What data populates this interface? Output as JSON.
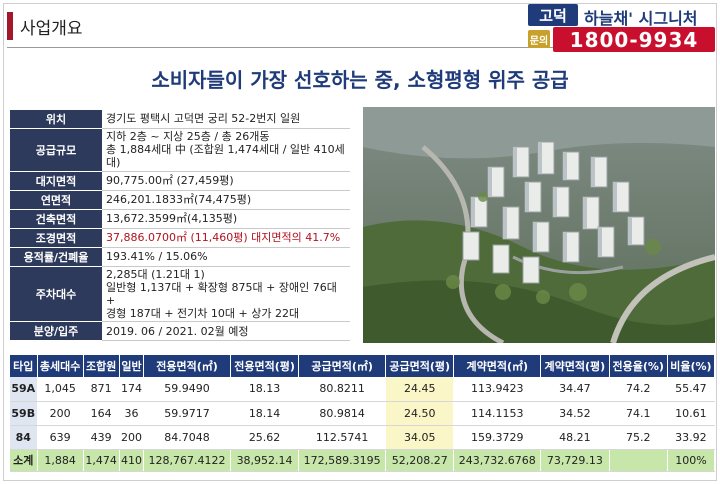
{
  "header": {
    "title": "사업개요"
  },
  "brand": {
    "box_label": "고덕",
    "name": "하늘채' 시그니처",
    "inquiry_label": "문의",
    "phone": "1800-9934"
  },
  "headline": "소비자들이 가장 선호하는 중, 소형평형 위주 공급",
  "info": [
    {
      "key": "위치",
      "value": "경기도 평택시 고덕면 궁리 52-2번지 일원"
    },
    {
      "key": "공급규모",
      "value": "지하 2층 ~ 지상 25층 / 총 26개동\n총 1,884세대 中 (조합원 1,474세대 / 일반 410세대)"
    },
    {
      "key": "대지면적",
      "value": "90,775.00㎡ (27,459평)"
    },
    {
      "key": "연면적",
      "value": "246,201.1833㎡(74,475평)"
    },
    {
      "key": "건축면적",
      "value": "13,672.3599㎡(4,135평)"
    },
    {
      "key": "조경면적",
      "value": "37,886.0700㎡ (11,460평) 대지면적의 41.7%"
    },
    {
      "key": "용적률/건폐율",
      "value": "193.41% / 15.06%"
    },
    {
      "key": "주차대수",
      "value": "2,285대 (1.21대 1)\n일반형 1,137대 + 확장형 875대 + 장애인 76대 +\n경형 187대 + 전기차 10대 + 상가 22대"
    },
    {
      "key": "분양/입주",
      "value": "2019. 06 / 2021. 02월 예정"
    }
  ],
  "table": {
    "headers": [
      "타입",
      "총세대수",
      "조합원",
      "일반",
      "전용면적(㎡)",
      "전용면적(평)",
      "공급면적(㎡)",
      "공급면적(평)",
      "계약면적(㎡)",
      "계약면적(평)",
      "전용율(%)",
      "비율(%)"
    ],
    "rows": [
      [
        "59A",
        "1,045",
        "871",
        "174",
        "59.9490",
        "18.13",
        "80.8211",
        "24.45",
        "113.9423",
        "34.47",
        "74.2",
        "55.47"
      ],
      [
        "59B",
        "200",
        "164",
        "36",
        "59.9717",
        "18.14",
        "80.9814",
        "24.50",
        "114.1153",
        "34.52",
        "74.1",
        "10.61"
      ],
      [
        "84",
        "639",
        "439",
        "200",
        "84.7048",
        "25.62",
        "112.5741",
        "34.05",
        "159.3729",
        "48.21",
        "75.2",
        "33.92"
      ]
    ],
    "total": [
      "소계",
      "1,884",
      "1,474",
      "410",
      "128,767.4122",
      "38,952.14",
      "172,589.3195",
      "52,208.27",
      "243,732.6768",
      "73,729.13",
      "",
      "100%"
    ]
  },
  "colors": {
    "navy": "#1f3b7a",
    "red": "#c8102e",
    "gold": "#c8a12b",
    "highlight": "#fbf6c8",
    "total_row": "#c7e6a9"
  }
}
